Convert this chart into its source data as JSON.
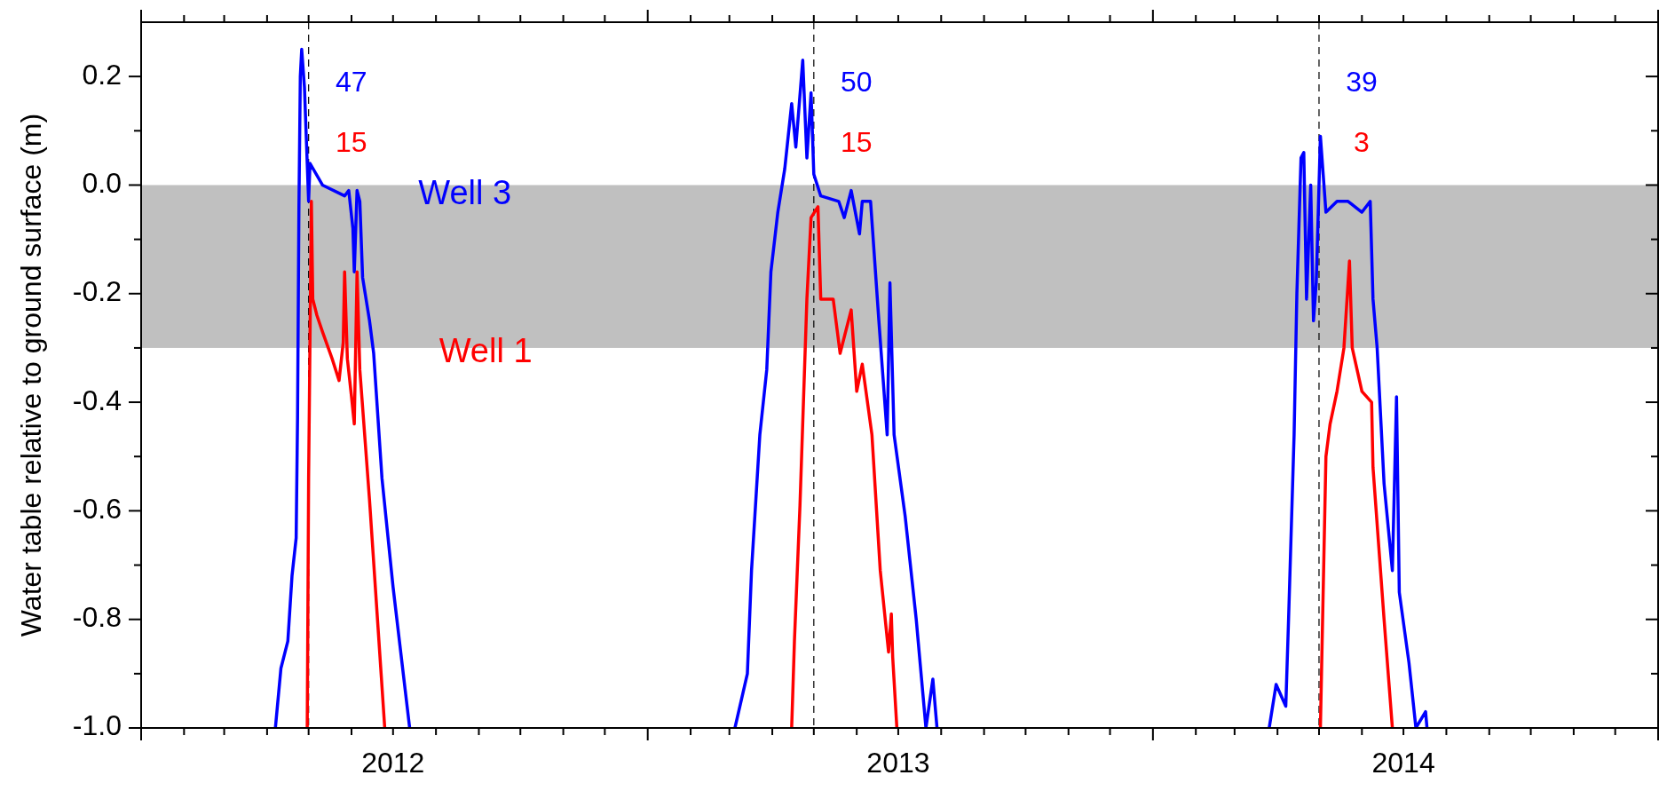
{
  "chart_data": {
    "type": "line",
    "ylabel": "Water table relative to ground surface (m)",
    "xlim": [
      "2012-01-01",
      "2015-01-01"
    ],
    "xticks": [
      {
        "value": "2012-01-01",
        "label": null
      },
      {
        "value": "2012-02-01",
        "label": null
      },
      {
        "value": "2012-03-01",
        "label": null
      },
      {
        "value": "2012-04-01",
        "label": null
      },
      {
        "value": "2012-05-01",
        "label": null
      },
      {
        "value": "2012-06-01",
        "label": null
      },
      {
        "value": "2012-07-01",
        "label": "2012"
      },
      {
        "value": "2012-08-01",
        "label": null
      },
      {
        "value": "2012-09-01",
        "label": null
      },
      {
        "value": "2012-10-01",
        "label": null
      },
      {
        "value": "2012-11-01",
        "label": null
      },
      {
        "value": "2012-12-01",
        "label": null
      },
      {
        "value": "2013-01-01",
        "label": null
      },
      {
        "value": "2013-02-01",
        "label": null
      },
      {
        "value": "2013-03-01",
        "label": null
      },
      {
        "value": "2013-04-01",
        "label": null
      },
      {
        "value": "2013-05-01",
        "label": null
      },
      {
        "value": "2013-06-01",
        "label": null
      },
      {
        "value": "2013-07-01",
        "label": "2013"
      },
      {
        "value": "2013-08-01",
        "label": null
      },
      {
        "value": "2013-09-01",
        "label": null
      },
      {
        "value": "2013-10-01",
        "label": null
      },
      {
        "value": "2013-11-01",
        "label": null
      },
      {
        "value": "2013-12-01",
        "label": null
      },
      {
        "value": "2014-01-01",
        "label": null
      },
      {
        "value": "2014-02-01",
        "label": null
      },
      {
        "value": "2014-03-01",
        "label": null
      },
      {
        "value": "2014-04-01",
        "label": null
      },
      {
        "value": "2014-05-01",
        "label": null
      },
      {
        "value": "2014-06-01",
        "label": null
      },
      {
        "value": "2014-07-01",
        "label": "2014"
      },
      {
        "value": "2014-08-01",
        "label": null
      },
      {
        "value": "2014-09-01",
        "label": null
      },
      {
        "value": "2014-10-01",
        "label": null
      },
      {
        "value": "2014-11-01",
        "label": null
      },
      {
        "value": "2014-12-01",
        "label": null
      },
      {
        "value": "2015-01-01",
        "label": null
      }
    ],
    "ylim": [
      -1.0,
      0.3
    ],
    "yticks": [
      {
        "value": -1.0,
        "label": "-1.0"
      },
      {
        "value": -0.9,
        "label": null
      },
      {
        "value": -0.8,
        "label": "-0.8"
      },
      {
        "value": -0.7,
        "label": null
      },
      {
        "value": -0.6,
        "label": "-0.6"
      },
      {
        "value": -0.5,
        "label": null
      },
      {
        "value": -0.4,
        "label": "-0.4"
      },
      {
        "value": -0.3,
        "label": null
      },
      {
        "value": -0.2,
        "label": "-0.2"
      },
      {
        "value": -0.1,
        "label": null
      },
      {
        "value": 0.0,
        "label": "0.0"
      },
      {
        "value": 0.1,
        "label": null
      },
      {
        "value": 0.2,
        "label": "0.2"
      }
    ],
    "bands": [
      {
        "axis": "y",
        "from": -0.3,
        "to": 0.0,
        "color": "#c0c0c0"
      }
    ],
    "ref_lines": [
      {
        "axis": "x",
        "value": "2012-05-01",
        "color": "#000000",
        "line_style": "dashed"
      },
      {
        "axis": "x",
        "value": "2013-05-01",
        "color": "#000000",
        "line_style": "dashed"
      },
      {
        "axis": "x",
        "value": "2014-05-01",
        "color": "#000000",
        "line_style": "dashed"
      }
    ],
    "series": [
      {
        "name": "Well 3",
        "color": "#0000ff",
        "x": [
          "2012-04-07",
          "2012-04-11",
          "2012-04-16",
          "2012-04-19",
          "2012-04-22",
          "2012-04-23",
          "2012-04-24",
          "2012-04-25",
          "2012-04-26",
          "2012-04-28",
          "2012-04-30",
          "2012-05-01",
          "2012-05-02",
          "2012-05-11",
          "2012-05-27",
          "2012-05-30",
          "2012-06-02",
          "2012-06-03",
          "2012-06-05",
          "2012-06-07",
          "2012-06-09",
          "2012-06-14",
          "2012-06-17",
          "2012-06-23",
          "2012-07-01",
          "2012-07-13",
          "2012-12-31",
          "2013-03-05",
          "2013-03-14",
          "2013-03-17",
          "2013-03-23",
          "2013-03-28",
          "2013-03-31",
          "2013-04-05",
          "2013-04-10",
          "2013-04-15",
          "2013-04-18",
          "2013-04-23",
          "2013-04-26",
          "2013-04-29",
          "2013-05-01",
          "2013-05-06",
          "2013-05-19",
          "2013-05-23",
          "2013-05-28",
          "2013-06-03",
          "2013-06-05",
          "2013-06-11",
          "2013-06-17",
          "2013-06-23",
          "2013-06-25",
          "2013-06-28",
          "2013-07-06",
          "2013-07-14",
          "2013-07-21",
          "2013-07-26",
          "2013-07-29",
          "2013-12-31",
          "2014-03-26",
          "2014-03-31",
          "2014-04-07",
          "2014-04-09",
          "2014-04-13",
          "2014-04-15",
          "2014-04-18",
          "2014-04-20",
          "2014-04-22",
          "2014-04-25",
          "2014-04-27",
          "2014-04-29",
          "2014-05-02",
          "2014-05-06",
          "2014-05-14",
          "2014-05-22",
          "2014-06-01",
          "2014-06-07",
          "2014-06-09",
          "2014-06-12",
          "2014-06-17",
          "2014-06-23",
          "2014-06-26",
          "2014-06-28",
          "2014-07-05",
          "2014-07-10",
          "2014-07-17",
          "2014-07-18"
        ],
        "values": [
          -1.0,
          -0.89,
          -0.84,
          -0.72,
          -0.65,
          -0.43,
          -0.04,
          0.2,
          0.25,
          0.18,
          0.04,
          -0.03,
          0.04,
          0.0,
          -0.02,
          -0.01,
          -0.08,
          -0.16,
          -0.01,
          -0.03,
          -0.17,
          -0.25,
          -0.31,
          -0.54,
          -0.74,
          -1.0,
          null,
          -1.0,
          -0.9,
          -0.71,
          -0.46,
          -0.34,
          -0.16,
          -0.05,
          0.03,
          0.15,
          0.07,
          0.23,
          0.05,
          0.17,
          0.02,
          -0.02,
          -0.03,
          -0.06,
          -0.01,
          -0.09,
          -0.03,
          -0.03,
          -0.25,
          -0.46,
          -0.18,
          -0.46,
          -0.61,
          -0.8,
          -1.0,
          -0.91,
          -1.0,
          null,
          -1.0,
          -0.92,
          -0.96,
          -0.8,
          -0.46,
          -0.2,
          0.05,
          0.06,
          -0.21,
          0.0,
          -0.25,
          -0.18,
          0.09,
          -0.05,
          -0.03,
          -0.03,
          -0.05,
          -0.03,
          -0.21,
          -0.3,
          -0.55,
          -0.71,
          -0.39,
          -0.75,
          -0.88,
          -1.0,
          -0.97,
          -1.0
        ]
      },
      {
        "name": "Well 1",
        "color": "#ff0000",
        "x": [
          "2012-04-30",
          "2012-05-01",
          "2012-05-03",
          "2012-05-04",
          "2012-05-07",
          "2012-05-11",
          "2012-05-18",
          "2012-05-23",
          "2012-05-26",
          "2012-05-27",
          "2012-05-29",
          "2012-06-01",
          "2012-06-03",
          "2012-06-05",
          "2012-06-07",
          "2012-06-14",
          "2012-06-25",
          "2012-12-31",
          "2013-04-15",
          "2013-04-17",
          "2013-04-21",
          "2013-04-26",
          "2013-04-29",
          "2013-05-04",
          "2013-05-06",
          "2013-05-15",
          "2013-05-20",
          "2013-05-28",
          "2013-06-01",
          "2013-06-05",
          "2013-06-12",
          "2013-06-18",
          "2013-06-24",
          "2013-06-26",
          "2013-06-27",
          "2013-06-30",
          "2013-12-31",
          "2014-05-02",
          "2014-05-06",
          "2014-05-09",
          "2014-05-14",
          "2014-05-19",
          "2014-05-23",
          "2014-05-25",
          "2014-06-01",
          "2014-06-08",
          "2014-06-09",
          "2014-06-17",
          "2014-06-23"
        ],
        "values": [
          -1.0,
          -0.54,
          -0.03,
          -0.21,
          -0.24,
          -0.27,
          -0.32,
          -0.36,
          -0.29,
          -0.16,
          -0.32,
          -0.39,
          -0.44,
          -0.16,
          -0.34,
          -0.58,
          -1.0,
          null,
          -1.0,
          -0.84,
          -0.59,
          -0.21,
          -0.06,
          -0.04,
          -0.21,
          -0.21,
          -0.31,
          -0.23,
          -0.38,
          -0.33,
          -0.46,
          -0.71,
          -0.86,
          -0.79,
          -0.87,
          -1.0,
          null,
          -1.0,
          -0.5,
          -0.44,
          -0.38,
          -0.3,
          -0.14,
          -0.3,
          -0.38,
          -0.4,
          -0.52,
          -0.8,
          -1.0
        ]
      }
    ],
    "annotations": [
      "47",
      "15",
      "50",
      "15",
      "39",
      "3"
    ]
  }
}
